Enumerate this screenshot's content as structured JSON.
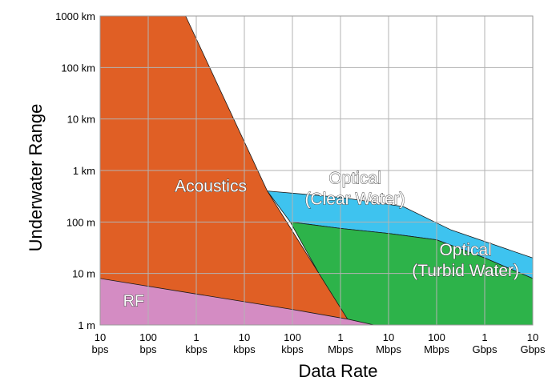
{
  "chart_data": {
    "type": "area",
    "xlabel": "Data Rate",
    "ylabel": "Underwater Range",
    "x_scale": "log",
    "y_scale": "log",
    "xlim": [
      10,
      10000000000
    ],
    "ylim": [
      1,
      1000000
    ],
    "grid": true,
    "x_ticks": [
      {
        "value": 10,
        "line1": "10",
        "line2": "bps"
      },
      {
        "value": 100,
        "line1": "100",
        "line2": "bps"
      },
      {
        "value": 1000,
        "line1": "1",
        "line2": "kbps"
      },
      {
        "value": 10000,
        "line1": "10",
        "line2": "kbps"
      },
      {
        "value": 100000,
        "line1": "100",
        "line2": "kbps"
      },
      {
        "value": 1000000,
        "line1": "1",
        "line2": "Mbps"
      },
      {
        "value": 10000000,
        "line1": "10",
        "line2": "Mbps"
      },
      {
        "value": 100000000,
        "line1": "100",
        "line2": "Mbps"
      },
      {
        "value": 1000000000,
        "line1": "1",
        "line2": "Gbps"
      },
      {
        "value": 10000000000,
        "line1": "10",
        "line2": "Gbps"
      }
    ],
    "y_ticks": [
      {
        "value": 1,
        "label": "1 m"
      },
      {
        "value": 10,
        "label": "10 m"
      },
      {
        "value": 100,
        "label": "100 m"
      },
      {
        "value": 1000,
        "label": "1 km"
      },
      {
        "value": 10000,
        "label": "10 km"
      },
      {
        "value": 100000,
        "label": "100 km"
      },
      {
        "value": 1000000,
        "label": "1000 km"
      }
    ],
    "regions": [
      {
        "key": "optical-clear",
        "label_lines": [
          "Optical",
          "(Clear Water)"
        ],
        "color": "#3ec3ef",
        "label_at": [
          2000000,
          450
        ],
        "polygon": [
          [
            30000,
            400
          ],
          [
            1000000,
            300
          ],
          [
            20000000,
            200
          ],
          [
            200000000,
            70
          ],
          [
            10000000000,
            20
          ],
          [
            10000000000,
            8
          ],
          [
            1000000000,
            20
          ],
          [
            100000000,
            45
          ],
          [
            10000000,
            60
          ],
          [
            1000000,
            75
          ],
          [
            90000,
            100
          ]
        ]
      },
      {
        "key": "optical-turbid",
        "label_lines": [
          "Optical",
          "(Turbid Water)"
        ],
        "color": "#2db34a",
        "label_at": [
          400000000,
          18
        ],
        "polygon": [
          [
            90000,
            100
          ],
          [
            1000000,
            75
          ],
          [
            10000000,
            60
          ],
          [
            100000000,
            45
          ],
          [
            1000000000,
            20
          ],
          [
            10000000000,
            8
          ],
          [
            10000000000,
            1
          ],
          [
            1400000,
            1
          ]
        ]
      },
      {
        "key": "acoustics",
        "label_lines": [
          "Acoustics"
        ],
        "color": "#e05f25",
        "label_at": [
          2000,
          500
        ],
        "polygon": [
          [
            10,
            1000000
          ],
          [
            600,
            1000000
          ],
          [
            30000,
            400
          ],
          [
            1400000,
            1.3
          ],
          [
            1400000,
            1
          ],
          [
            10,
            1
          ]
        ]
      },
      {
        "key": "rf",
        "label_lines": [
          "RF"
        ],
        "color": "#d48cc3",
        "label_at": [
          50,
          3
        ],
        "polygon": [
          [
            10,
            8
          ],
          [
            1000,
            4
          ],
          [
            100000,
            2
          ],
          [
            1400000,
            1.3
          ],
          [
            5000000,
            1
          ],
          [
            10,
            1
          ]
        ]
      }
    ]
  }
}
